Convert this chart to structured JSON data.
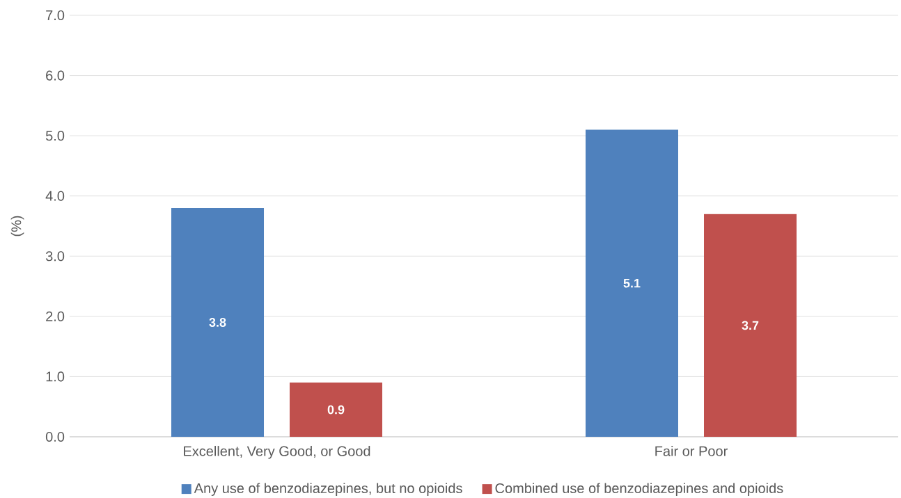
{
  "chart_data": {
    "type": "bar",
    "ylabel": "(%)",
    "categories": [
      "Excellent, Very Good, or Good",
      "Fair or Poor"
    ],
    "series": [
      {
        "name": "Any use of benzodiazepines, but no opioids",
        "color": "#4f81bd",
        "values": [
          3.8,
          5.1
        ]
      },
      {
        "name": "Combined use of benzodiazepines and opioids",
        "color": "#c0504d",
        "values": [
          0.9,
          3.7
        ]
      }
    ],
    "ylim": [
      0,
      7
    ],
    "yticks": [
      {
        "value": 0,
        "label": "0.0"
      },
      {
        "value": 1,
        "label": "1.0"
      },
      {
        "value": 2,
        "label": "2.0"
      },
      {
        "value": 3,
        "label": "3.0"
      },
      {
        "value": 4,
        "label": "4.0"
      },
      {
        "value": 5,
        "label": "5.0"
      },
      {
        "value": 6,
        "label": "6.0"
      },
      {
        "value": 7,
        "label": "7.0"
      }
    ],
    "grid": "y",
    "legend": "bottom",
    "data_labels": true
  }
}
